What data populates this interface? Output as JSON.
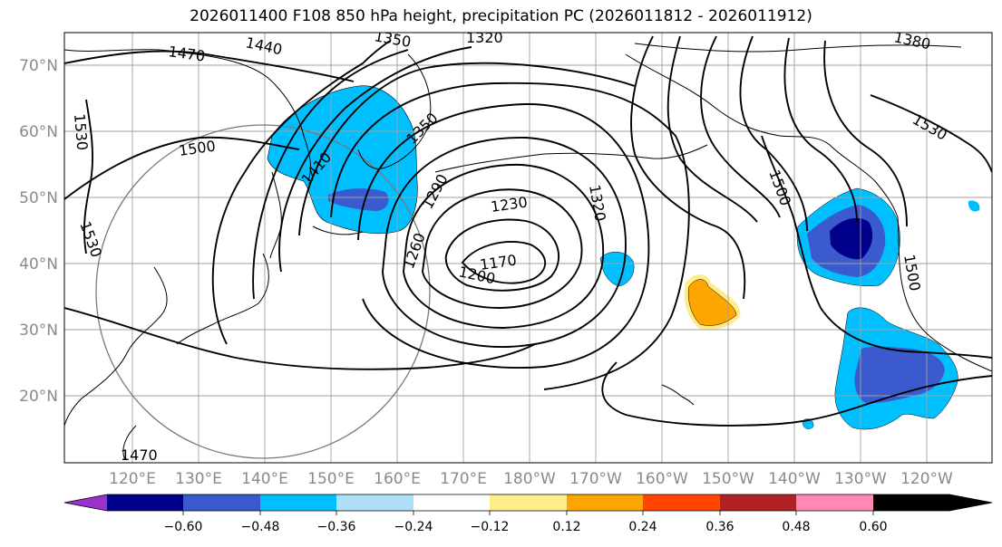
{
  "title": "2026011400 F108 850 hPa height, precipitation PC (2026011812 - 2026011912)",
  "latitude_labels": [
    "70°N",
    "60°N",
    "50°N",
    "40°N",
    "30°N",
    "20°N"
  ],
  "longitude_labels": [
    "120°E",
    "130°E",
    "140°E",
    "150°E",
    "160°E",
    "170°E",
    "180°W",
    "170°W",
    "160°W",
    "150°W",
    "140°W",
    "130°W",
    "120°W"
  ],
  "colorbar": {
    "ticks": [
      "−0.60",
      "−0.48",
      "−0.36",
      "−0.24",
      "−0.12",
      "0.12",
      "0.24",
      "0.36",
      "0.48",
      "0.60"
    ],
    "colors": [
      "#9932cc",
      "#00008b",
      "#3a5acd",
      "#00bfff",
      "#b0e0f8",
      "#ffffff",
      "#ffec8b",
      "#ffa500",
      "#ff4500",
      "#b22222",
      "#ff88b4"
    ]
  },
  "contour_labels": [
    {
      "text": "1470"
    },
    {
      "text": "1440"
    },
    {
      "text": "1350"
    },
    {
      "text": "1320"
    },
    {
      "text": "1380"
    },
    {
      "text": "1530"
    },
    {
      "text": "1500"
    },
    {
      "text": "1410"
    },
    {
      "text": "1350"
    },
    {
      "text": "1290"
    },
    {
      "text": "1230"
    },
    {
      "text": "1320"
    },
    {
      "text": "1500"
    },
    {
      "text": "1530"
    },
    {
      "text": "1530"
    },
    {
      "text": "1260"
    },
    {
      "text": "1170"
    },
    {
      "text": "1200"
    },
    {
      "text": "1500"
    },
    {
      "text": "1470"
    }
  ]
}
